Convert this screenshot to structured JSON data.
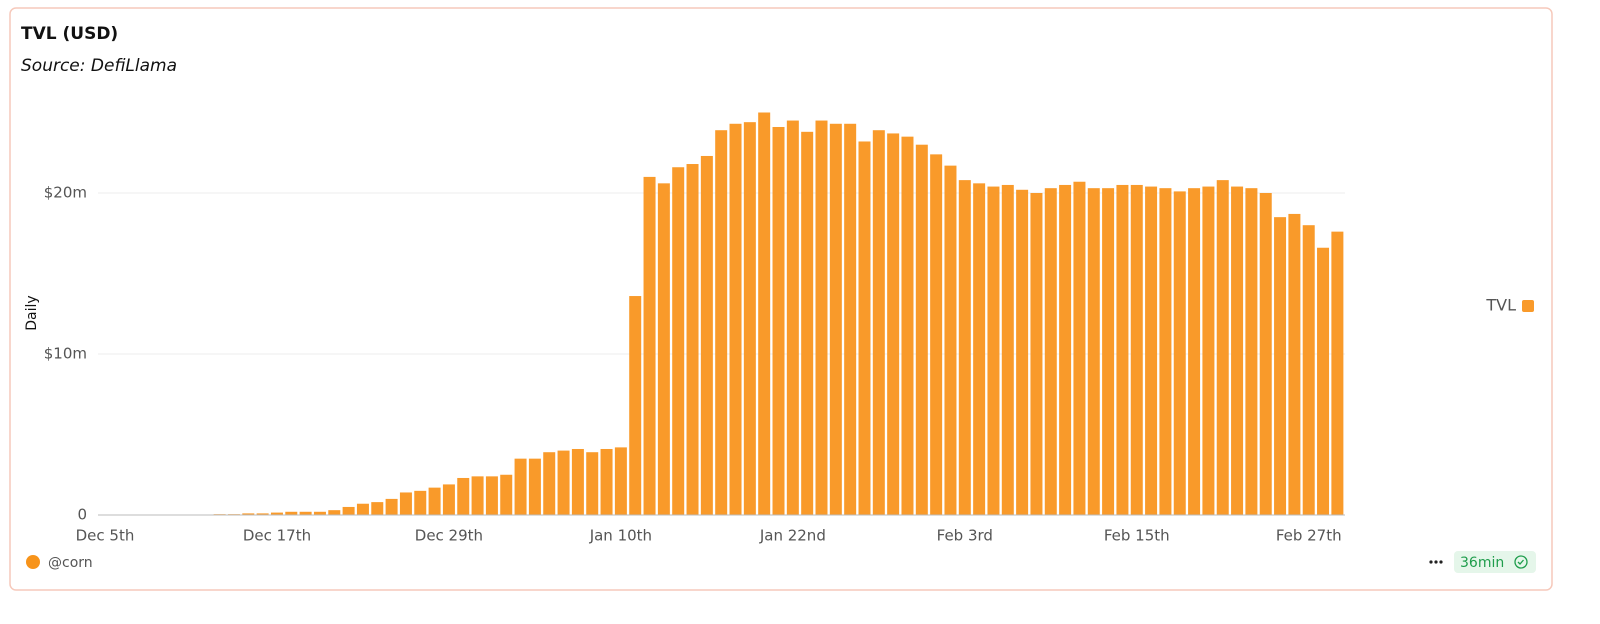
{
  "chart_data": {
    "type": "bar",
    "title": "TVL (USD)",
    "subtitle": "Source: DefiLlama",
    "y_axis_label": "Daily",
    "author": "@corn",
    "freshness": "36min",
    "color": "#f99a2a",
    "grid": true,
    "legend_position": "right",
    "categories": [
      "Dec 5th",
      null,
      null,
      null,
      null,
      null,
      null,
      null,
      null,
      null,
      null,
      null,
      "Dec 17th",
      null,
      null,
      null,
      null,
      null,
      null,
      null,
      null,
      null,
      null,
      null,
      "Dec 29th",
      null,
      null,
      null,
      null,
      null,
      null,
      null,
      null,
      null,
      null,
      null,
      "Jan 10th",
      null,
      null,
      null,
      null,
      null,
      null,
      null,
      null,
      null,
      null,
      null,
      "Jan 22nd",
      null,
      null,
      null,
      null,
      null,
      null,
      null,
      null,
      null,
      null,
      null,
      "Feb 3rd",
      null,
      null,
      null,
      null,
      null,
      null,
      null,
      null,
      null,
      null,
      null,
      "Feb 15th",
      null,
      null,
      null,
      null,
      null,
      null,
      null,
      null,
      null,
      null,
      null,
      "Feb 27th",
      null,
      null
    ],
    "series": [
      {
        "name": "TVL",
        "color": "#f99a2a",
        "values": [
          20000,
          20000,
          20000,
          20000,
          20000,
          20000,
          20000,
          20000,
          50000,
          50000,
          100000,
          100000,
          150000,
          200000,
          200000,
          200000,
          300000,
          500000,
          700000,
          800000,
          1000000,
          1400000,
          1500000,
          1700000,
          1900000,
          2300000,
          2400000,
          2400000,
          2500000,
          3500000,
          3500000,
          3900000,
          4000000,
          4100000,
          3900000,
          4100000,
          4200000,
          13600000,
          21000000,
          20600000,
          21600000,
          21800000,
          22300000,
          23900000,
          24300000,
          24400000,
          25000000,
          24100000,
          24500000,
          23800000,
          24500000,
          24300000,
          24300000,
          23200000,
          23900000,
          23700000,
          23500000,
          23000000,
          22400000,
          21700000,
          20800000,
          20600000,
          20400000,
          20500000,
          20200000,
          20000000,
          20300000,
          20500000,
          20700000,
          20300000,
          20300000,
          20500000,
          20500000,
          20400000,
          20300000,
          20100000,
          20300000,
          20400000,
          20800000,
          20400000,
          20300000,
          20000000,
          18500000,
          18700000,
          18000000,
          16600000,
          17600000
        ]
      }
    ],
    "ylim": [
      0,
      26000000
    ],
    "yticks": [
      0,
      {
        "value": 10000000,
        "label": "$10m"
      },
      {
        "value": 20000000,
        "label": "$20m"
      }
    ]
  }
}
